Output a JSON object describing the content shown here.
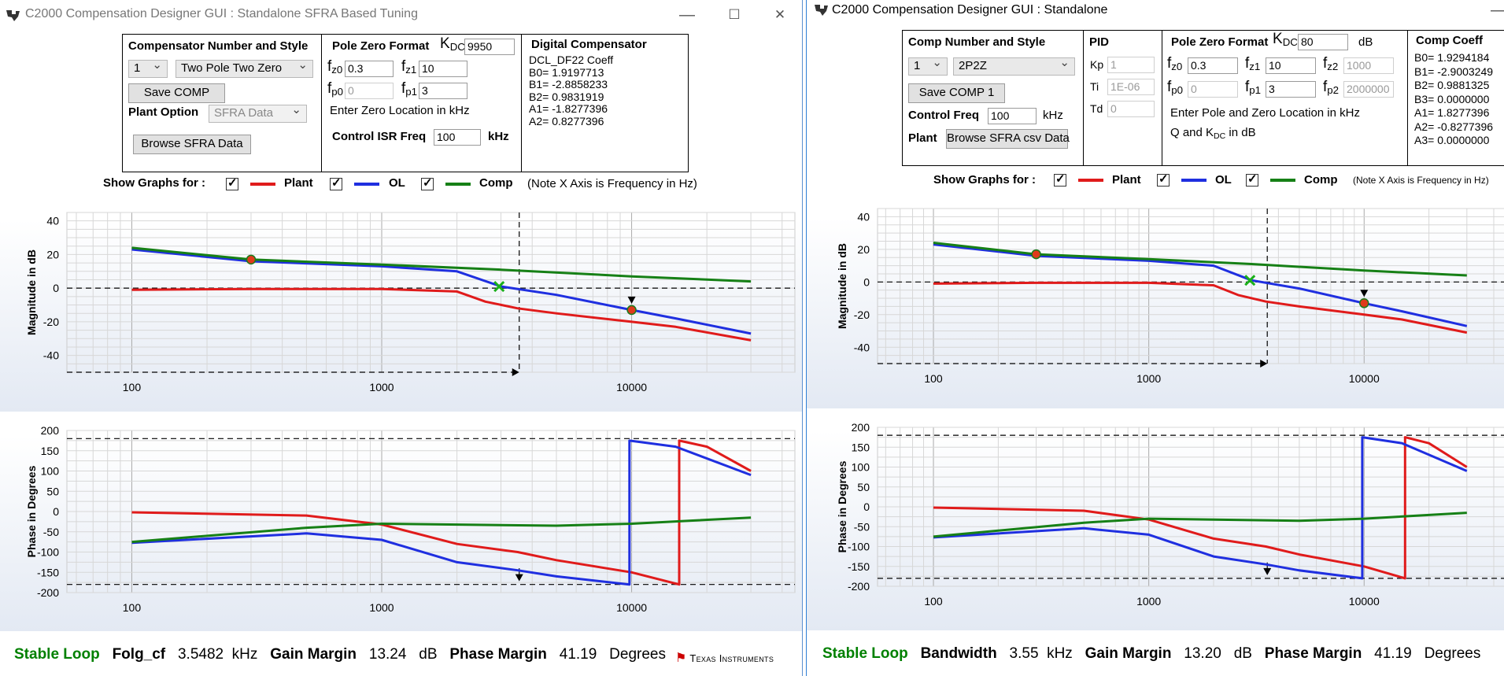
{
  "colors": {
    "plant": "#e01b1b",
    "ol": "#1f2fe0",
    "comp": "#168016",
    "stable": "#008000"
  },
  "left": {
    "title": "C2000 Compensation Designer GUI : Standalone SFRA Based Tuning",
    "controls": {
      "minimize": "—",
      "maximize": "☐",
      "close": "✕"
    },
    "comp_section": {
      "heading": "Compensator Number and Style",
      "number": "1",
      "style": "Two Pole Two Zero",
      "save_label": "Save COMP",
      "plant_option_label": "Plant Option",
      "plant_option_value": "SFRA Data",
      "browse_label": "Browse SFRA Data"
    },
    "pz_section": {
      "heading": "Pole Zero Format",
      "kdc_label": "K",
      "kdc_sub": "DC",
      "kdc_value": "9950",
      "fz0_sub": "z0",
      "fz0": "0.3",
      "fz1_sub": "z1",
      "fz1": "10",
      "fp0_sub": "p0",
      "fp0": "0",
      "fp1_sub": "p1",
      "fp1": "3",
      "hint": "Enter Zero Location in kHz",
      "isr_label": "Control ISR Freq",
      "isr_value": "100",
      "isr_unit": "kHz"
    },
    "digital": {
      "heading": "Digital Compensator",
      "lines": [
        "DCL_DF22 Coeff",
        "B0= 1.9197713",
        "B1= -2.8858233",
        "B2= 0.9831919",
        "A1= -1.8277396",
        "A2= 0.8277396"
      ]
    },
    "legend": {
      "show_label": "Show Graphs for :",
      "plant": "Plant",
      "ol": "OL",
      "comp": "Comp",
      "note": "(Note X Axis is Frequency in Hz)"
    },
    "mag_ylabel": "Magnitude in dB",
    "phase_ylabel": "Phase in Degrees",
    "mag_yticks": [
      "40",
      "20",
      "0",
      "-20",
      "-40"
    ],
    "xticks": [
      "100",
      "1000",
      "10000"
    ],
    "phase_yticks": [
      "200",
      "150",
      "100",
      "50",
      "0",
      "-50",
      "-100",
      "-150",
      "-200"
    ],
    "status": {
      "stable": "Stable Loop",
      "metric1_label": "Folg_cf",
      "metric1_value": "3.5482",
      "metric1_unit": "kHz",
      "gm_label": "Gain Margin",
      "gm_value": "13.24",
      "gm_unit": "dB",
      "pm_label": "Phase Margin",
      "pm_value": "41.19",
      "pm_unit": "Degrees",
      "brand": "Texas Instruments"
    }
  },
  "right": {
    "title": "C2000 Compensation Designer GUI : Standalone",
    "comp_section": {
      "heading": "Comp Number and Style",
      "number": "1",
      "style": "2P2Z",
      "save_label": "Save COMP 1",
      "freq_label": "Control Freq",
      "freq_value": "100",
      "freq_unit": "kHz",
      "plant_label": "Plant",
      "browse_label": "Browse SFRA csv Data"
    },
    "pid": {
      "heading": "PID",
      "kp_label": "Kp",
      "kp": "1",
      "ti_label": "Ti",
      "ti": "1E-06",
      "td_label": "Td",
      "td": "0"
    },
    "pz_section": {
      "heading": "Pole Zero Format",
      "kdc_label": "K",
      "kdc_sub": "DC",
      "kdc_value": "80",
      "kdc_unit": "dB",
      "fz0_sub": "z0",
      "fz0": "0.3",
      "fz1_sub": "z1",
      "fz1": "10",
      "fz2_sub": "z2",
      "fz2": "1000",
      "fp0_sub": "p0",
      "fp0": "0",
      "fp1_sub": "p1",
      "fp1": "3",
      "fp2_sub": "p2",
      "fp2": "2000000",
      "hint": "Enter Pole and Zero Location in kHz",
      "hint2_a": "Q and K",
      "hint2_sub": "DC",
      "hint2_b": " in dB"
    },
    "coeff": {
      "heading": "Comp Coeff",
      "lines": [
        "B0= 1.9294184",
        "B1= -2.9003249",
        "B2= 0.9881325",
        "B3= 0.0000000",
        "A1= 1.8277396",
        "A2= -0.8277396",
        "A3= 0.0000000"
      ]
    },
    "legend": {
      "show_label": "Show Graphs for :",
      "plant": "Plant",
      "ol": "OL",
      "comp": "Comp",
      "note": "(Note X Axis is Frequency in Hz)"
    },
    "mag_ylabel": "Magnitude in dB",
    "phase_ylabel": "Phase in Degrees",
    "mag_yticks": [
      "40",
      "20",
      "0",
      "-20",
      "-40"
    ],
    "xticks": [
      "100",
      "1000",
      "10000"
    ],
    "phase_yticks": [
      "200",
      "150",
      "100",
      "50",
      "0",
      "-50",
      "-100",
      "-150",
      "-200"
    ],
    "status": {
      "stable": "Stable Loop",
      "metric1_label": "Bandwidth",
      "metric1_value": "3.55",
      "metric1_unit": "kHz",
      "gm_label": "Gain Margin",
      "gm_value": "13.20",
      "gm_unit": "dB",
      "pm_label": "Phase Margin",
      "pm_value": "41.19",
      "pm_unit": "Degrees"
    }
  },
  "chart_data": [
    {
      "type": "line",
      "xscale": "log",
      "xlabel": "",
      "ylabel": "Magnitude in dB",
      "ylim": [
        -50,
        45
      ],
      "xlim": [
        55,
        45000
      ],
      "series": [
        {
          "name": "Plant",
          "x": [
            100,
            300,
            1000,
            2000,
            2600,
            3500,
            5000,
            10000,
            15000,
            30000
          ],
          "values": [
            -1,
            -0.5,
            -0.5,
            -2,
            -8,
            -12,
            -15,
            -20,
            -23,
            -31
          ]
        },
        {
          "name": "OL",
          "x": [
            100,
            300,
            1000,
            2000,
            3000,
            5000,
            10000,
            15000,
            30000
          ],
          "values": [
            23,
            16,
            13,
            10,
            1,
            -4,
            -13,
            -18,
            -27
          ]
        },
        {
          "name": "Comp",
          "x": [
            100,
            300,
            1000,
            3000,
            10000,
            30000
          ],
          "values": [
            24,
            17,
            14,
            11,
            7,
            4
          ]
        }
      ],
      "markers": [
        {
          "x": 300,
          "y": 17
        },
        {
          "x": 10000,
          "y": -13
        },
        {
          "x": 2950,
          "y": 1
        },
        {
          "x": 3550,
          "y": -50
        }
      ]
    },
    {
      "type": "line",
      "xscale": "log",
      "xlabel": "",
      "ylabel": "Phase in Degrees",
      "ylim": [
        -200,
        200
      ],
      "xlim": [
        55,
        45000
      ],
      "series": [
        {
          "name": "Plant",
          "x": [
            100,
            500,
            1000,
            2000,
            3500,
            5000,
            10000,
            15500,
            15500,
            20000,
            30000
          ],
          "values": [
            -2,
            -10,
            -32,
            -80,
            -100,
            -120,
            -150,
            -180,
            175,
            160,
            100
          ]
        },
        {
          "name": "OL",
          "x": [
            100,
            500,
            1000,
            2000,
            3500,
            5000,
            9800,
            9800,
            15000,
            30000
          ],
          "values": [
            -77,
            -54,
            -70,
            -125,
            -145,
            -160,
            -180,
            175,
            160,
            90
          ]
        },
        {
          "name": "Comp",
          "x": [
            100,
            500,
            1000,
            5000,
            10000,
            30000
          ],
          "values": [
            -75,
            -40,
            -30,
            -35,
            -30,
            -15
          ]
        }
      ]
    }
  ]
}
